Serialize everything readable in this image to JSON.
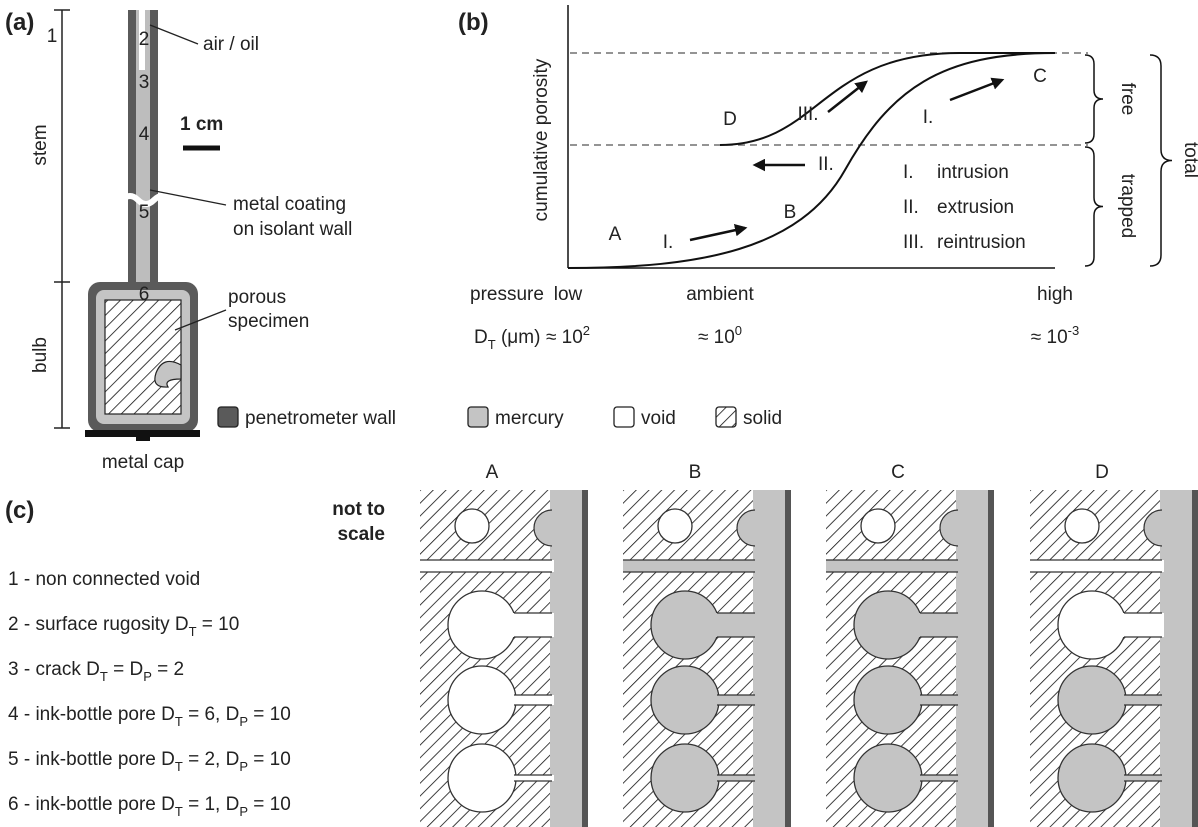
{
  "panel_a": {
    "label": "(a)",
    "air_oil": "air / oil",
    "scale_bar": "1 cm",
    "stem": "stem",
    "coating": [
      "metal coating",
      "on isolant wall"
    ],
    "specimen": [
      "porous",
      "specimen"
    ],
    "bulb": "bulb",
    "cap": "metal cap"
  },
  "panel_b": {
    "label": "(b)",
    "y_axis": "cumulative porosity",
    "points": [
      "A",
      "B",
      "C",
      "D"
    ],
    "arrows": [
      "I.",
      "II.",
      "III.",
      "I."
    ],
    "steps": [
      {
        "num": "I.",
        "name": "intrusion"
      },
      {
        "num": "II.",
        "name": "extrusion"
      },
      {
        "num": "III.",
        "name": "reintrusion"
      }
    ],
    "braces": [
      "free",
      "trapped",
      "total"
    ],
    "pressure": {
      "label": "pressure",
      "values": [
        "low",
        "ambient",
        "high"
      ]
    },
    "diameter": {
      "label": [
        {
          "text": "D"
        },
        {
          "sub": "T"
        },
        {
          "text": " (μm)"
        }
      ],
      "values": [
        [
          {
            "text": "≈ 10"
          },
          {
            "sup": "2"
          }
        ],
        [
          {
            "text": "≈ 10"
          },
          {
            "sup": "0"
          }
        ],
        [
          {
            "text": "≈ 10"
          },
          {
            "sup": "-3"
          }
        ]
      ]
    }
  },
  "legend": [
    "penetrometer wall",
    "mercury",
    "void",
    "solid"
  ],
  "panel_c": {
    "label": "(c)",
    "note": [
      "not to",
      "scale"
    ],
    "items": [
      [
        {
          "text": "1 - non connected void"
        }
      ],
      [
        {
          "text": "2 - surface rugosity D"
        },
        {
          "sub": "T"
        },
        {
          "text": " = 10"
        }
      ],
      [
        {
          "text": "3 - crack D"
        },
        {
          "sub": "T"
        },
        {
          "text": " = D"
        },
        {
          "sub": "P"
        },
        {
          "text": " = 2"
        }
      ],
      [
        {
          "text": "4 - ink-bottle pore D"
        },
        {
          "sub": "T"
        },
        {
          "text": " = 6, D"
        },
        {
          "sub": "P"
        },
        {
          "text": " = 10"
        }
      ],
      [
        {
          "text": "5 - ink-bottle pore D"
        },
        {
          "sub": "T"
        },
        {
          "text": " = 2, D"
        },
        {
          "sub": "P"
        },
        {
          "text": " = 10"
        }
      ],
      [
        {
          "text": "6 - ink-bottle pore D"
        },
        {
          "sub": "T"
        },
        {
          "text": " = 1, D"
        },
        {
          "sub": "P"
        },
        {
          "text": " = 10"
        }
      ]
    ],
    "columns": [
      "A",
      "B",
      "C",
      "D"
    ],
    "markers": [
      "1",
      "2",
      "3",
      "4",
      "5",
      "6"
    ]
  }
}
